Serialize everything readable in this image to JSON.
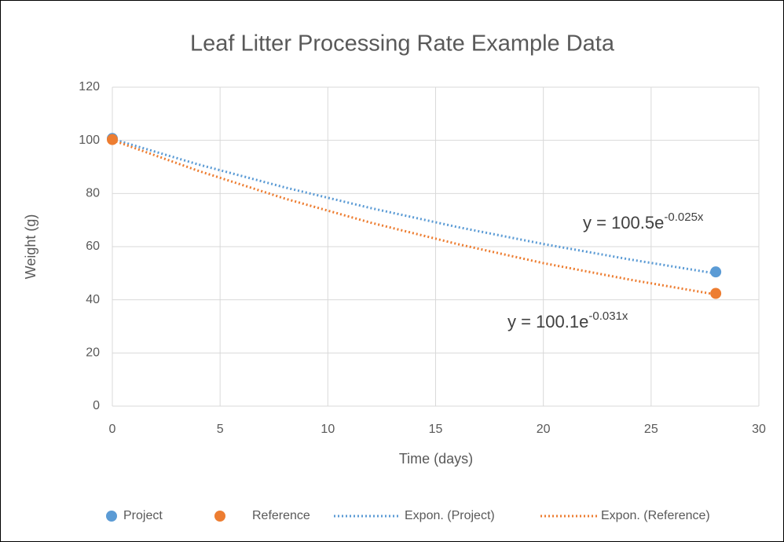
{
  "chart_data": {
    "type": "scatter",
    "title": "Leaf Litter Processing Rate Example Data",
    "x_label": "Time (days)",
    "y_label": "Weight (g)",
    "xlim": [
      0,
      30
    ],
    "xticks": [
      0,
      5,
      10,
      15,
      20,
      25,
      30
    ],
    "ylim": [
      0,
      120
    ],
    "yticks": [
      0,
      20,
      40,
      60,
      80,
      100,
      120
    ],
    "grid": true,
    "legend": "bottom",
    "series": [
      {
        "name": "Project",
        "color": "#5b9bd5",
        "marker": "circle",
        "x": [
          0,
          28
        ],
        "values": [
          100.7,
          50.5
        ]
      },
      {
        "name": "Reference",
        "color": "#ed7d31",
        "marker": "circle",
        "x": [
          0,
          28
        ],
        "values": [
          100.3,
          42.4
        ]
      },
      {
        "name": "Expon. (Project)",
        "color": "#5b9bd5",
        "line": "dotted",
        "x": [
          0,
          4,
          8,
          12,
          16,
          20,
          24,
          28
        ],
        "values": [
          100.5,
          90.9,
          82.3,
          74.5,
          67.4,
          61.0,
          55.2,
          49.9
        ]
      },
      {
        "name": "Expon. (Reference)",
        "color": "#ed7d31",
        "line": "dotted",
        "x": [
          0,
          4,
          8,
          12,
          16,
          20,
          24,
          28
        ],
        "values": [
          100.1,
          88.5,
          78.1,
          69.0,
          61.0,
          53.8,
          47.6,
          42.0
        ]
      }
    ],
    "annotations": [
      {
        "text": "y = 100.5e",
        "superscript": "-0.025x"
      },
      {
        "text": "y = 100.1e",
        "superscript": "-0.031x"
      }
    ]
  }
}
